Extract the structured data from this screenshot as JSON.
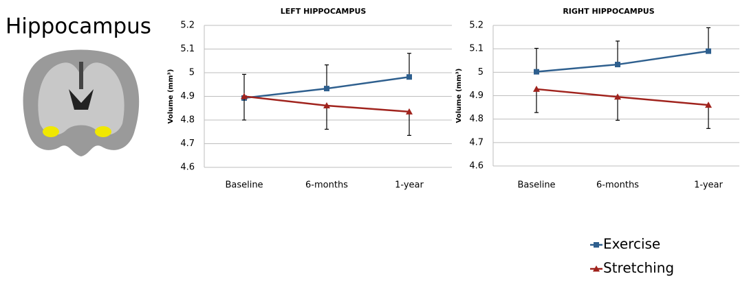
{
  "title": "Hippocampus",
  "chart_data": [
    {
      "type": "line",
      "title": "LEFT HIPPOCAMPUS",
      "y_label": "Volume (mm³)",
      "categories": [
        "Baseline",
        "6-months",
        "1-year"
      ],
      "ylim": [
        4.6,
        5.2
      ],
      "yticks": [
        4.6,
        4.7,
        4.8,
        4.9,
        5,
        5.1,
        5.2
      ],
      "grid": true,
      "series": [
        {
          "name": "Exercise",
          "color": "#2e5f8e",
          "marker": "square",
          "values": [
            4.893,
            4.933,
            4.982
          ],
          "errors": [
            0.1,
            0.1,
            0.1
          ],
          "error_direction": "up"
        },
        {
          "name": "Stretching",
          "color": "#a0231d",
          "marker": "triangle",
          "values": [
            4.9,
            4.861,
            4.835
          ],
          "errors": [
            0.1,
            0.1,
            0.1
          ],
          "error_direction": "down"
        }
      ]
    },
    {
      "type": "line",
      "title": "RIGHT HIPPOCAMPUS",
      "y_label": "Volume (mm³)",
      "categories": [
        "Baseline",
        "6-months",
        "1-year"
      ],
      "ylim": [
        4.6,
        5.2
      ],
      "yticks": [
        4.6,
        4.7,
        4.8,
        4.9,
        5,
        5.1,
        5.2
      ],
      "grid": true,
      "series": [
        {
          "name": "Exercise",
          "color": "#2e5f8e",
          "marker": "square",
          "values": [
            5.002,
            5.033,
            5.09
          ],
          "errors": [
            0.1,
            0.1,
            0.1
          ],
          "error_direction": "up"
        },
        {
          "name": "Stretching",
          "color": "#a0231d",
          "marker": "triangle",
          "values": [
            4.928,
            4.895,
            4.86
          ],
          "errors": [
            0.1,
            0.1,
            0.1
          ],
          "error_direction": "down"
        }
      ]
    }
  ]
}
